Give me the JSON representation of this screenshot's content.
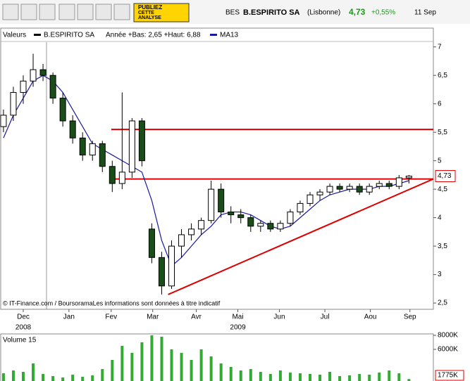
{
  "header": {
    "code": "BES",
    "name": "B.ESPIRITO SA",
    "market": "(Lisbonne)",
    "price": "4,73",
    "change": "+0,55%",
    "date": "11 Sep"
  },
  "toolbar": {
    "ad_lines": [
      "PUBLIEZ",
      "CETTE",
      "ANALYSE"
    ]
  },
  "chart_data": [
    {
      "type": "candlestick",
      "legend_title": "Valeurs",
      "name": "B.ESPIRITO SA",
      "range_note": "Année +Bas: 2,65 +Haut: 6,88",
      "note": "© IT-Finance.com / BoursoramaLes informations sont données à titre indicatif",
      "x": [
        -2,
        -1,
        0,
        1,
        2,
        3,
        4,
        5,
        6,
        7,
        8,
        9,
        10,
        11,
        12,
        13,
        14,
        15,
        16,
        17,
        18,
        19,
        20,
        21,
        22,
        23,
        24,
        25,
        26,
        27,
        28,
        29,
        30,
        31,
        32,
        33,
        34,
        35,
        36,
        37,
        38,
        39
      ],
      "open": [
        5.6,
        5.8,
        6.2,
        6.4,
        6.6,
        6.5,
        6.1,
        5.7,
        5.4,
        5.1,
        5.3,
        4.9,
        4.6,
        4.8,
        5.7,
        3.8,
        3.3,
        2.8,
        3.5,
        3.7,
        3.8,
        3.95,
        4.5,
        4.1,
        4.05,
        4.0,
        3.85,
        3.9,
        3.8,
        3.9,
        4.1,
        4.25,
        4.4,
        4.45,
        4.55,
        4.5,
        4.55,
        4.45,
        4.55,
        4.6,
        4.55,
        4.7
      ],
      "high": [
        5.9,
        6.3,
        6.5,
        6.88,
        6.7,
        6.55,
        6.2,
        5.8,
        5.5,
        5.35,
        5.35,
        5.0,
        6.2,
        5.75,
        5.75,
        3.9,
        3.4,
        3.6,
        3.8,
        3.9,
        4.0,
        4.65,
        4.6,
        4.2,
        4.15,
        4.05,
        3.95,
        3.95,
        3.95,
        4.15,
        4.3,
        4.45,
        4.5,
        4.6,
        4.6,
        4.6,
        4.6,
        4.6,
        4.65,
        4.65,
        4.75,
        4.75
      ],
      "low": [
        5.5,
        5.7,
        6.0,
        6.3,
        6.4,
        6.0,
        5.6,
        5.3,
        5.0,
        5.0,
        4.8,
        4.45,
        4.5,
        4.7,
        4.9,
        3.2,
        2.65,
        2.75,
        3.3,
        3.6,
        3.7,
        3.9,
        4.0,
        3.9,
        3.9,
        3.75,
        3.75,
        3.75,
        3.75,
        3.85,
        4.05,
        4.2,
        4.3,
        4.4,
        4.45,
        4.45,
        4.4,
        4.4,
        4.5,
        4.5,
        4.5,
        4.6
      ],
      "close": [
        5.8,
        6.2,
        6.4,
        6.6,
        6.5,
        6.1,
        5.7,
        5.4,
        5.1,
        5.3,
        4.9,
        4.6,
        4.8,
        5.7,
        5.0,
        3.3,
        2.8,
        3.5,
        3.7,
        3.8,
        3.95,
        4.5,
        4.1,
        4.05,
        4.0,
        3.85,
        3.9,
        3.8,
        3.9,
        4.1,
        4.25,
        4.4,
        4.45,
        4.55,
        4.5,
        4.55,
        4.45,
        4.55,
        4.6,
        4.55,
        4.7,
        4.73
      ],
      "up_color": "#ffffff",
      "down_color": "#1a4d1a",
      "series": [
        {
          "name": "MA13",
          "color": "#1a1aa0",
          "values": [
            5.4,
            5.8,
            6.1,
            6.4,
            6.5,
            6.4,
            6.2,
            5.9,
            5.6,
            5.3,
            5.2,
            5.1,
            5.0,
            4.9,
            4.8,
            4.3,
            3.6,
            3.15,
            3.3,
            3.5,
            3.7,
            3.85,
            4.05,
            4.1,
            4.1,
            4.05,
            3.95,
            3.85,
            3.8,
            3.85,
            4.0,
            4.15,
            4.3,
            4.4,
            4.45,
            4.5,
            4.5,
            4.5,
            4.55,
            4.55,
            4.6,
            4.65
          ]
        }
      ],
      "lines": [
        {
          "color": "#dd0000",
          "x": [
            8.9,
            41.47
          ],
          "y": [
            5.55,
            5.55
          ]
        },
        {
          "color": "#dd0000",
          "x": [
            8.9,
            41.47
          ],
          "y": [
            4.68,
            4.68
          ]
        },
        {
          "color": "#dd0000",
          "x": [
            14.65,
            41.47
          ],
          "y": [
            2.65,
            4.68
          ]
        }
      ],
      "last_price": {
        "value": 4.73,
        "label": "4,73"
      },
      "xlim": [
        -2.28,
        41.47
      ],
      "ylim": [
        2.39,
        7.33
      ],
      "yticks": [
        7,
        {
          "value": 6.5,
          "label": "6,5"
        },
        6,
        {
          "value": 5.5,
          "label": "5,5"
        },
        5,
        {
          "value": 4.5,
          "label": "4,5"
        },
        4,
        {
          "value": 3.5,
          "label": "3,5"
        },
        3,
        {
          "value": 2.5,
          "label": "2,5"
        }
      ],
      "xticks": [
        {
          "value": 0,
          "label": "Dec"
        },
        {
          "value": 4.62,
          "label": "Jan"
        },
        {
          "value": 8.89,
          "label": "Fev"
        },
        {
          "value": 13.09,
          "label": "Mar"
        },
        {
          "value": 17.5,
          "label": "Avr"
        },
        {
          "value": 21.7,
          "label": "Mai"
        },
        {
          "value": 25.9,
          "label": "Jun"
        },
        {
          "value": 30.5,
          "label": "Jul"
        },
        {
          "value": 35.1,
          "label": "Aou"
        },
        {
          "value": 39.1,
          "label": "Sep"
        }
      ],
      "year_labels": [
        {
          "value": 0,
          "label": "2008"
        },
        {
          "value": 21.7,
          "label": "2009"
        }
      ]
    },
    {
      "type": "bar",
      "title": "Volume 15",
      "x": [
        -2,
        -1,
        0,
        1,
        2,
        3,
        4,
        5,
        6,
        7,
        8,
        9,
        10,
        11,
        12,
        13,
        14,
        15,
        16,
        17,
        18,
        19,
        20,
        21,
        22,
        23,
        24,
        25,
        26,
        27,
        28,
        29,
        30,
        31,
        32,
        33,
        34,
        35,
        36,
        37,
        38,
        39
      ],
      "values": [
        2600,
        3000,
        2800,
        4000,
        2500,
        2200,
        2000,
        2400,
        2100,
        2300,
        3200,
        4500,
        6500,
        5500,
        7000,
        8000,
        7800,
        6000,
        5500,
        4500,
        6000,
        5000,
        4000,
        3500,
        3000,
        3200,
        2800,
        2500,
        3000,
        2700,
        2600,
        2500,
        2400,
        2800,
        2200,
        2300,
        2500,
        2400,
        2700,
        3000,
        2600,
        1775
      ],
      "color": "#33aa33",
      "xlim": [
        -2.28,
        41.47
      ],
      "ylim": [
        1500,
        8200
      ],
      "yticks": [
        {
          "value": 8000,
          "label": "8000K"
        },
        {
          "value": 6000,
          "label": "6000K"
        }
      ],
      "last_value": {
        "value": 1775,
        "label": "1775K"
      }
    }
  ]
}
